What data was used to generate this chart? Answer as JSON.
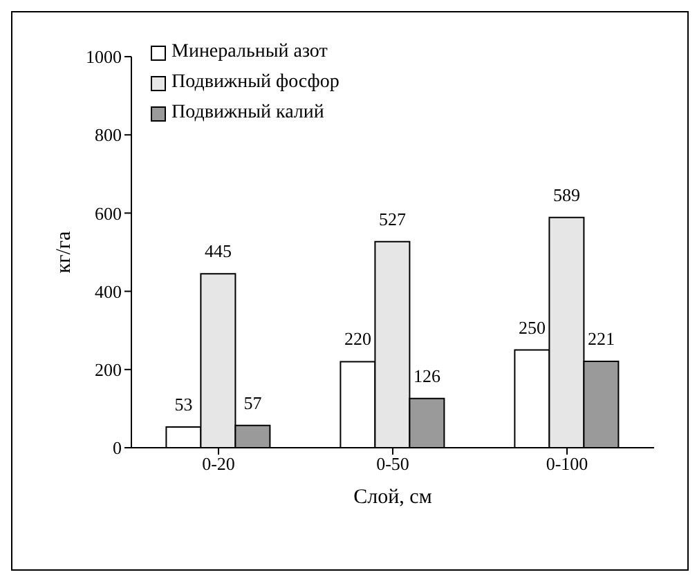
{
  "chart_data": {
    "type": "bar",
    "xlabel": "Слой, см",
    "ylabel": "кг/га",
    "categories": [
      "0-20",
      "0-50",
      "0-100"
    ],
    "series": [
      {
        "name": "Минеральный азот",
        "color": "#ffffff",
        "values": [
          53,
          220,
          250
        ]
      },
      {
        "name": "Подвижный фосфор",
        "color": "#e6e6e6",
        "values": [
          445,
          527,
          589
        ]
      },
      {
        "name": "Подвижный калий",
        "color": "#9a9a9a",
        "values": [
          57,
          126,
          221
        ]
      }
    ],
    "ylim": [
      0,
      1000
    ],
    "yticks": [
      0,
      200,
      400,
      600,
      800,
      1000
    ],
    "data_labels": true,
    "legend": "top left",
    "grid": false
  }
}
